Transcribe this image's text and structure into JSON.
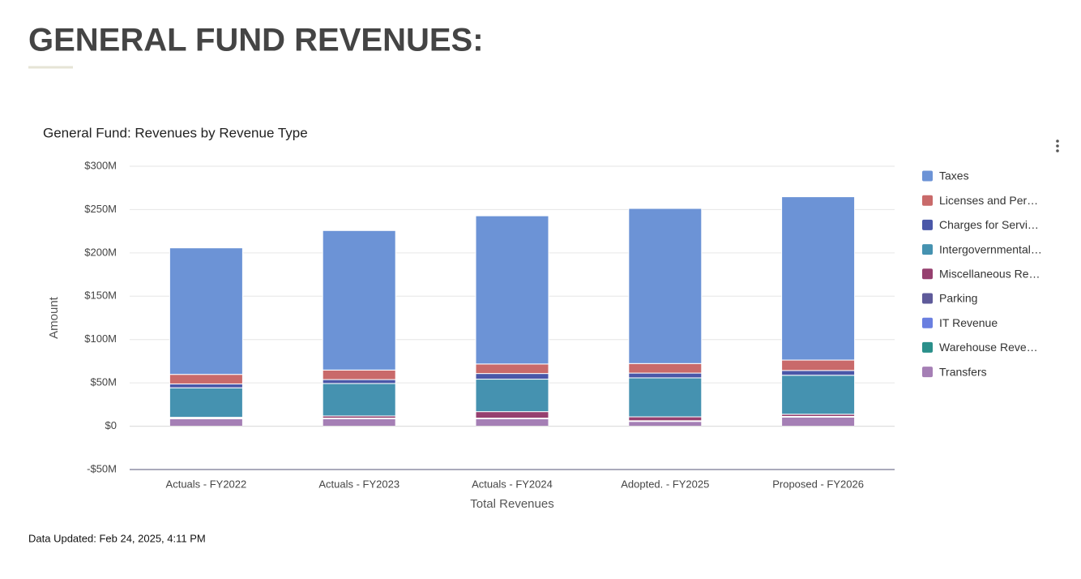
{
  "heading": "GENERAL FUND REVENUES:",
  "footer": "Data Updated: Feb 24, 2025, 4:11 PM",
  "chart_data": {
    "type": "stacked-bar",
    "title": "General Fund: Revenues by Revenue Type",
    "x_label": "Total Revenues",
    "y_label": "Amount",
    "categories": [
      "Actuals - FY2022",
      "Actuals - FY2023",
      "Actuals - FY2024",
      "Adopted. - FY2025",
      "Proposed - FY2026"
    ],
    "series": [
      {
        "name": "Taxes",
        "color": "#6c93d6",
        "values": [
          146,
          161,
          171,
          179,
          188.5
        ]
      },
      {
        "name": "Licenses and Per…",
        "color": "#c96a6a",
        "values": [
          11,
          11,
          11,
          11,
          12
        ]
      },
      {
        "name": "Charges for Servi…",
        "color": "#4a57a8",
        "values": [
          4.5,
          4.5,
          6.5,
          5.5,
          5.5
        ]
      },
      {
        "name": "Intergovernmental…",
        "color": "#4592b0",
        "values": [
          34,
          37.5,
          37.5,
          45,
          45
        ]
      },
      {
        "name": "Miscellaneous Re…",
        "color": "#96406f",
        "values": [
          1,
          2.5,
          7.5,
          4.5,
          2.5
        ]
      },
      {
        "name": "Parking",
        "color": "#5e5a9a",
        "values": [
          0.5,
          0.5,
          0.5,
          0.5,
          0.5
        ]
      },
      {
        "name": "IT Revenue",
        "color": "#6a7fe0",
        "values": [
          0,
          0,
          0,
          0,
          0
        ]
      },
      {
        "name": "Warehouse Reve…",
        "color": "#2a8f8a",
        "values": [
          0.3,
          0.3,
          0.3,
          0.3,
          0.3
        ]
      },
      {
        "name": "Transfers",
        "color": "#a57fb5",
        "values": [
          8.5,
          8.5,
          8.5,
          5.5,
          10.5
        ]
      }
    ],
    "ylim": [
      -50,
      300
    ],
    "yticks": [
      {
        "value": -50,
        "label": "-$50M"
      },
      {
        "value": 0,
        "label": "$0"
      },
      {
        "value": 50,
        "label": "$50M"
      },
      {
        "value": 100,
        "label": "$100M"
      },
      {
        "value": 150,
        "label": "$150M"
      },
      {
        "value": 200,
        "label": "$200M"
      },
      {
        "value": 250,
        "label": "$250M"
      },
      {
        "value": 300,
        "label": "$300M"
      }
    ],
    "grid": true,
    "legend": "right"
  }
}
